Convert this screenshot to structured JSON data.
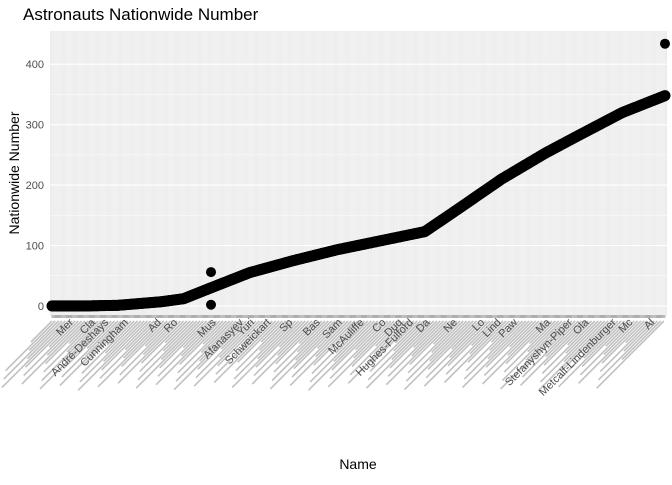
{
  "chart_data": {
    "type": "scatter",
    "title": "Astronauts Nationwide Number",
    "xlabel": "Name",
    "ylabel": "Nationwide Number",
    "ylim": [
      -15,
      455
    ],
    "yticks": [
      0,
      100,
      200,
      300,
      400
    ],
    "grid": true,
    "legend": "none",
    "n_categories": 560,
    "visible_x_tick_labels": [
      {
        "category_index": 20,
        "label": "Mer"
      },
      {
        "category_index": 40,
        "label": "Cla"
      },
      {
        "category_index": 52,
        "label": "André-Deshays"
      },
      {
        "category_index": 70,
        "label": "Cunningham"
      },
      {
        "category_index": 100,
        "label": "Ad"
      },
      {
        "category_index": 115,
        "label": "Ro"
      },
      {
        "category_index": 150,
        "label": "Mus"
      },
      {
        "category_index": 175,
        "label": "Afanasyev"
      },
      {
        "category_index": 185,
        "label": "Yuri"
      },
      {
        "category_index": 200,
        "label": "Schweickart"
      },
      {
        "category_index": 220,
        "label": "Sp"
      },
      {
        "category_index": 245,
        "label": "Bas"
      },
      {
        "category_index": 265,
        "label": "Sam"
      },
      {
        "category_index": 285,
        "label": "McAuliffe"
      },
      {
        "category_index": 305,
        "label": "Co"
      },
      {
        "category_index": 320,
        "label": "Duq"
      },
      {
        "category_index": 330,
        "label": "Hughes-Fulford"
      },
      {
        "category_index": 345,
        "label": "Da"
      },
      {
        "category_index": 370,
        "label": "Ne"
      },
      {
        "category_index": 395,
        "label": "Lo"
      },
      {
        "category_index": 410,
        "label": "Lind"
      },
      {
        "category_index": 425,
        "label": "Paw"
      },
      {
        "category_index": 455,
        "label": "Ma"
      },
      {
        "category_index": 475,
        "label": "Stefanyshyn-Piper"
      },
      {
        "category_index": 490,
        "label": "Ola"
      },
      {
        "category_index": 515,
        "label": "Metcalf-Lindenburger"
      },
      {
        "category_index": 530,
        "label": "Mc"
      },
      {
        "category_index": 550,
        "label": "Al"
      }
    ],
    "trend_series": {
      "x_index": [
        0,
        30,
        60,
        100,
        120,
        145,
        180,
        220,
        260,
        300,
        340,
        370,
        410,
        450,
        480,
        520,
        559
      ],
      "y": [
        0,
        0,
        1,
        7,
        12,
        30,
        55,
        75,
        93,
        108,
        123,
        160,
        210,
        253,
        282,
        320,
        348
      ]
    },
    "outliers": [
      {
        "x_index": 145,
        "y": 56
      },
      {
        "x_index": 145,
        "y": 2
      },
      {
        "x_index": 559,
        "y": 434
      }
    ],
    "colors": {
      "panel_bg": "#ebebeb",
      "grid_line": "#ffffff",
      "points": "#000000",
      "tick_text": "#4d4d4d",
      "title_text": "#000000"
    }
  }
}
